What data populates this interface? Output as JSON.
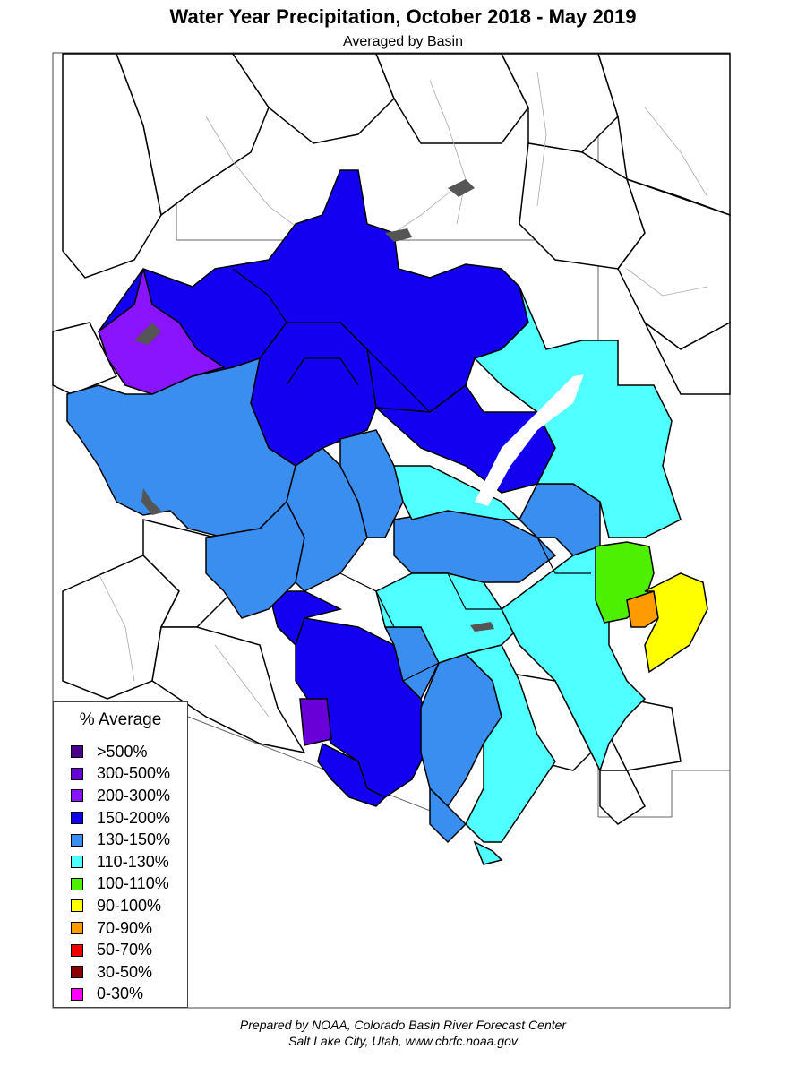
{
  "title": "Water Year Precipitation, October 2018 - May 2019",
  "subtitle": "Averaged by Basin",
  "legend": {
    "title": "% Average",
    "items": [
      {
        "label": ">500%",
        "color": "#4b0090"
      },
      {
        "label": "300-500%",
        "color": "#6a00d8"
      },
      {
        "label": "200-300%",
        "color": "#8b14ff"
      },
      {
        "label": "150-200%",
        "color": "#1400f0"
      },
      {
        "label": "130-150%",
        "color": "#3a8ef0"
      },
      {
        "label": "110-130%",
        "color": "#50ffff"
      },
      {
        "label": "100-110%",
        "color": "#4cf000"
      },
      {
        "label": "90-100%",
        "color": "#ffff00"
      },
      {
        "label": "70-90%",
        "color": "#ff9a00"
      },
      {
        "label": "50-70%",
        "color": "#f00000"
      },
      {
        "label": "30-50%",
        "color": "#8c0000"
      },
      {
        "label": "0-30%",
        "color": "#ff00ff"
      }
    ]
  },
  "footer": {
    "line1": "Prepared by NOAA, Colorado Basin River Forecast Center",
    "line2": "Salt Lake City, Utah, www.cbrfc.noaa.gov"
  }
}
